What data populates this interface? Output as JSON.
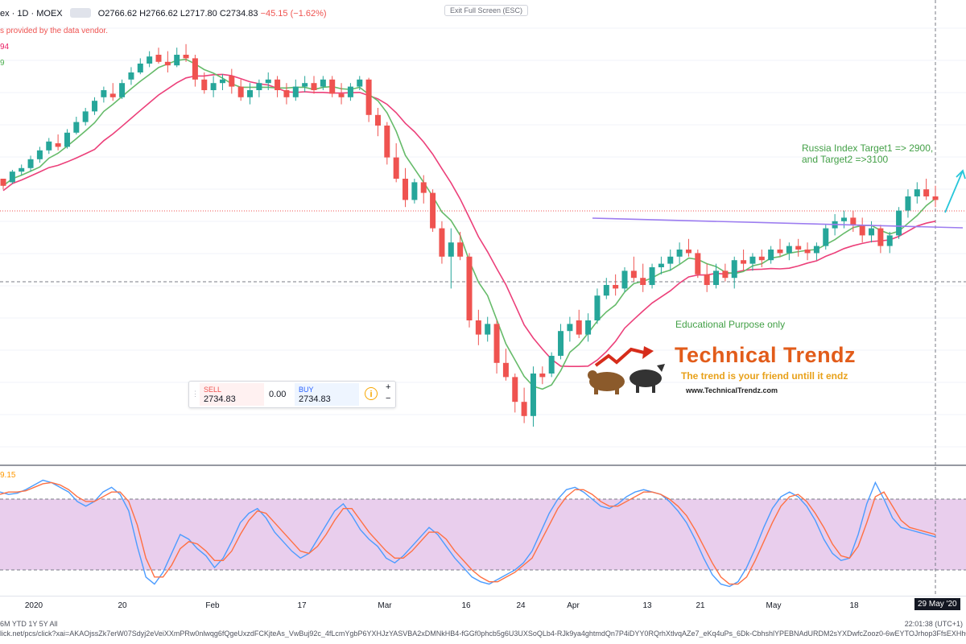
{
  "header": {
    "symbol": "ex · 1D · MOEX",
    "ohlc": "O2766.62 H2766.62 L2717.80 C2734.83",
    "change": "−45.15 (−1.62%)",
    "vendor_note": "s provided by the data vendor.",
    "ma1": "94",
    "ma2": "9"
  },
  "exit_fullscreen": "Exit Full Screen (ESC)",
  "annotations": {
    "target_line1": "Russia Index Target1 => 2900,",
    "target_line2": "and Target2 =>3100",
    "educational": "Educational Purpose only"
  },
  "trade_panel": {
    "sell_label": "SELL",
    "sell_price": "2734.83",
    "spread": "0.00",
    "buy_label": "BUY",
    "buy_price": "2734.83",
    "info": "i",
    "plus": "+",
    "minus": "−"
  },
  "logo": {
    "brand": "Technical Trendz",
    "tagline": "The trend is your friend untill it endz",
    "url": "www.TechnicalTrendz.com"
  },
  "oscillator": {
    "value_label": "9.15"
  },
  "x_axis": {
    "ticks": [
      "2020",
      "20",
      "Feb",
      "17",
      "Mar",
      "16",
      "24",
      "Apr",
      "13",
      "21",
      "May",
      "18"
    ],
    "cursor_label": "29 May '20"
  },
  "status_bar": {
    "ranges": "6M   YTD   1Y   5Y   All",
    "url": "lick.net/pcs/click?xai=AKAOjssZk7erW07Sdyj2eVeiXXmPRw0nlwqg6fQgeUxzdFCKjteAs_VwBuj92c_4fLcmYgbP6YXHJzYASVBA2xDMNkHB4-fGGf0phcb5g6U3UXSoQLb4-RJk9ya4ghtmdQn7P4iDYY0RQrhXtlvqAZe7_eKq4uPs_6Dk-CbhshlYPEBNAdURDM2sYXDwfcZooz0-6wEYTOJrhop3FfsEXHh02VvOK1-Ow5UBvJzRp",
    "clock": "22:01:38 (UTC+1)"
  },
  "colors": {
    "up": "#26a69a",
    "down": "#ef5350",
    "ma_fast": "#66bb6a",
    "ma_slow": "#ec407a",
    "trendline": "#9c7cf0",
    "arrow": "#26c6da",
    "osc_band": "#e1bee7",
    "osc_k": "#4c9cff",
    "osc_d": "#ff7043"
  },
  "chart_data": [
    {
      "type": "candlestick",
      "note": "Approximate daily OHLC series; relative price units",
      "candles": [
        [
          0,
          140,
          139,
          134,
          136
        ],
        [
          1,
          138,
          145,
          137,
          144
        ],
        [
          2,
          144,
          148,
          142,
          146
        ],
        [
          3,
          146,
          153,
          144,
          151
        ],
        [
          4,
          151,
          158,
          149,
          156
        ],
        [
          5,
          156,
          163,
          154,
          161
        ],
        [
          6,
          160,
          165,
          156,
          158
        ],
        [
          7,
          158,
          168,
          157,
          166
        ],
        [
          8,
          166,
          175,
          165,
          172
        ],
        [
          9,
          172,
          180,
          170,
          178
        ],
        [
          10,
          178,
          186,
          176,
          184
        ],
        [
          11,
          186,
          192,
          183,
          190
        ],
        [
          12,
          188,
          194,
          184,
          186
        ],
        [
          13,
          186,
          196,
          185,
          194
        ],
        [
          14,
          196,
          203,
          193,
          200
        ],
        [
          15,
          200,
          208,
          199,
          205
        ],
        [
          16,
          205,
          212,
          203,
          209
        ],
        [
          17,
          210,
          214,
          205,
          206
        ],
        [
          18,
          206,
          212,
          200,
          204
        ],
        [
          19,
          204,
          214,
          203,
          210
        ],
        [
          20,
          210,
          216,
          206,
          208
        ],
        [
          21,
          208,
          210,
          192,
          196
        ],
        [
          22,
          196,
          200,
          188,
          190
        ],
        [
          23,
          190,
          198,
          186,
          194
        ],
        [
          24,
          194,
          199,
          190,
          196
        ],
        [
          25,
          198,
          202,
          188,
          192
        ],
        [
          26,
          192,
          196,
          184,
          186
        ],
        [
          27,
          186,
          194,
          182,
          190
        ],
        [
          28,
          190,
          196,
          186,
          194
        ],
        [
          29,
          194,
          200,
          190,
          196
        ],
        [
          30,
          196,
          198,
          186,
          190
        ],
        [
          31,
          190,
          194,
          182,
          186
        ],
        [
          32,
          186,
          196,
          184,
          192
        ],
        [
          33,
          192,
          198,
          189,
          194
        ],
        [
          34,
          194,
          198,
          188,
          190
        ],
        [
          35,
          192,
          198,
          190,
          196
        ],
        [
          36,
          196,
          198,
          186,
          188
        ],
        [
          37,
          188,
          194,
          182,
          186
        ],
        [
          38,
          186,
          194,
          184,
          192
        ],
        [
          39,
          192,
          198,
          190,
          196
        ],
        [
          40,
          196,
          197,
          172,
          176
        ],
        [
          41,
          176,
          180,
          164,
          170
        ],
        [
          42,
          170,
          172,
          148,
          152
        ],
        [
          43,
          152,
          160,
          138,
          140
        ],
        [
          44,
          140,
          146,
          124,
          128
        ],
        [
          45,
          128,
          140,
          126,
          138
        ],
        [
          46,
          138,
          142,
          126,
          132
        ],
        [
          47,
          132,
          134,
          110,
          112
        ],
        [
          48,
          112,
          116,
          92,
          96
        ],
        [
          49,
          96,
          112,
          78,
          104
        ],
        [
          50,
          104,
          110,
          94,
          96
        ],
        [
          51,
          96,
          98,
          56,
          60
        ],
        [
          52,
          60,
          66,
          46,
          52
        ],
        [
          53,
          52,
          62,
          48,
          58
        ],
        [
          54,
          58,
          60,
          30,
          36
        ],
        [
          55,
          36,
          44,
          26,
          28
        ],
        [
          56,
          28,
          30,
          8,
          14
        ],
        [
          57,
          14,
          22,
          2,
          6
        ],
        [
          58,
          6,
          34,
          0,
          30
        ],
        [
          59,
          30,
          34,
          24,
          28
        ],
        [
          60,
          30,
          42,
          28,
          40
        ],
        [
          61,
          40,
          58,
          38,
          54
        ],
        [
          62,
          54,
          62,
          48,
          58
        ],
        [
          63,
          60,
          66,
          50,
          52
        ],
        [
          64,
          52,
          64,
          48,
          60
        ],
        [
          65,
          60,
          78,
          58,
          74
        ],
        [
          66,
          74,
          84,
          72,
          80
        ],
        [
          67,
          80,
          86,
          74,
          78
        ],
        [
          68,
          78,
          90,
          76,
          88
        ],
        [
          69,
          88,
          96,
          82,
          84
        ],
        [
          70,
          84,
          92,
          76,
          80
        ],
        [
          71,
          80,
          92,
          78,
          90
        ],
        [
          72,
          90,
          96,
          86,
          92
        ],
        [
          73,
          92,
          100,
          88,
          96
        ],
        [
          74,
          96,
          104,
          92,
          100
        ],
        [
          75,
          100,
          106,
          96,
          98
        ],
        [
          76,
          98,
          100,
          84,
          86
        ],
        [
          77,
          86,
          92,
          76,
          80
        ],
        [
          78,
          80,
          92,
          78,
          88
        ],
        [
          79,
          88,
          92,
          82,
          84
        ],
        [
          80,
          84,
          96,
          78,
          94
        ],
        [
          81,
          94,
          100,
          88,
          92
        ],
        [
          82,
          92,
          98,
          88,
          96
        ],
        [
          83,
          96,
          100,
          90,
          94
        ],
        [
          84,
          94,
          102,
          92,
          100
        ],
        [
          85,
          100,
          106,
          96,
          98
        ],
        [
          86,
          98,
          104,
          94,
          102
        ],
        [
          87,
          102,
          106,
          96,
          100
        ],
        [
          88,
          100,
          104,
          94,
          98
        ],
        [
          89,
          98,
          104,
          94,
          102
        ],
        [
          90,
          102,
          114,
          100,
          112
        ],
        [
          91,
          112,
          120,
          108,
          116
        ],
        [
          92,
          116,
          122,
          112,
          118
        ],
        [
          93,
          118,
          122,
          110,
          114
        ],
        [
          94,
          114,
          118,
          104,
          108
        ],
        [
          95,
          108,
          116,
          104,
          112
        ],
        [
          96,
          112,
          114,
          98,
          102
        ],
        [
          97,
          102,
          110,
          98,
          108
        ],
        [
          98,
          108,
          124,
          106,
          122
        ],
        [
          99,
          122,
          134,
          118,
          130
        ],
        [
          100,
          130,
          138,
          126,
          134
        ],
        [
          101,
          134,
          140,
          128,
          130
        ],
        [
          102,
          130,
          136,
          124,
          128
        ]
      ]
    },
    {
      "type": "line",
      "name": "stochastic oscillator",
      "band": [
        20,
        80
      ],
      "series": [
        {
          "values": [
            86,
            84,
            85,
            88,
            92,
            96,
            94,
            90,
            86,
            78,
            74,
            78,
            86,
            90,
            84,
            70,
            40,
            14,
            8,
            18,
            34,
            50,
            46,
            38,
            32,
            22,
            30,
            44,
            60,
            68,
            72,
            64,
            52,
            44,
            36,
            30,
            34,
            46,
            58,
            70,
            76,
            66,
            54,
            46,
            40,
            30,
            26,
            32,
            40,
            48,
            56,
            50,
            40,
            30,
            22,
            14,
            10,
            8,
            12,
            16,
            20,
            26,
            36,
            52,
            68,
            80,
            88,
            90,
            86,
            80,
            74,
            72,
            76,
            82,
            86,
            88,
            86,
            84,
            78,
            70,
            60,
            46,
            30,
            16,
            8,
            6,
            10,
            22,
            38,
            56,
            72,
            82,
            86,
            82,
            74,
            62,
            46,
            34,
            28,
            30,
            50,
            76,
            94,
            80,
            64,
            56,
            54,
            52,
            50,
            48
          ]
        },
        {
          "values": [
            84,
            86,
            86,
            87,
            90,
            93,
            94,
            92,
            88,
            82,
            78,
            78,
            82,
            86,
            86,
            78,
            58,
            30,
            14,
            14,
            24,
            38,
            44,
            42,
            36,
            28,
            28,
            36,
            50,
            62,
            70,
            68,
            60,
            52,
            44,
            36,
            34,
            40,
            50,
            62,
            72,
            72,
            62,
            52,
            44,
            36,
            30,
            30,
            36,
            44,
            52,
            52,
            46,
            36,
            28,
            20,
            14,
            10,
            10,
            14,
            18,
            24,
            30,
            44,
            58,
            72,
            82,
            88,
            88,
            84,
            78,
            74,
            74,
            78,
            82,
            86,
            86,
            84,
            80,
            74,
            66,
            54,
            40,
            26,
            14,
            8,
            8,
            14,
            28,
            44,
            60,
            74,
            82,
            84,
            78,
            68,
            56,
            42,
            32,
            30,
            40,
            60,
            82,
            86,
            74,
            62,
            56,
            54,
            52,
            50
          ]
        }
      ]
    }
  ]
}
